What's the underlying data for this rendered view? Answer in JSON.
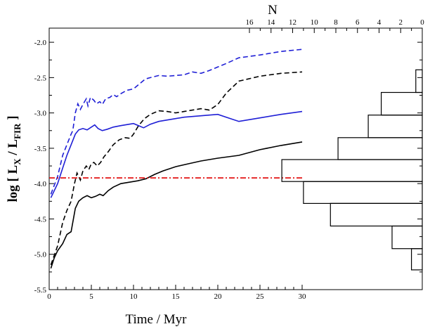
{
  "chart_data": {
    "type": "line",
    "title": "",
    "xlabel": "Time / Myr",
    "ylabel": {
      "prefix": "log [ L",
      "sub1": "X",
      "mid": " / L",
      "sub2": "FIR",
      "suffix": " ]"
    },
    "xlim": [
      0,
      30
    ],
    "ylim": [
      -5.5,
      -1.8
    ],
    "x_ticks": [
      0,
      5,
      10,
      15,
      20,
      25,
      30
    ],
    "y_ticks": [
      -5.5,
      -5.0,
      -4.5,
      -4.0,
      -3.5,
      -3.0,
      -2.5,
      -2.0
    ],
    "y_tick_labels": [
      "-5.5",
      "-5.0",
      "-4.5",
      "-4.0",
      "-3.5",
      "-3.0",
      "-2.5",
      "-2.0"
    ],
    "colors": {
      "blue": "#1f1fd6",
      "black": "#000000",
      "red": "#e00000"
    },
    "series": [
      {
        "color": "#1f1fd6",
        "dash": "dashed",
        "points": [
          [
            0.2,
            -4.15
          ],
          [
            1,
            -3.9
          ],
          [
            1.6,
            -3.6
          ],
          [
            2.1,
            -3.45
          ],
          [
            2.6,
            -3.3
          ],
          [
            2.8,
            -3.25
          ],
          [
            3.1,
            -3.0
          ],
          [
            3.4,
            -2.87
          ],
          [
            3.7,
            -2.95
          ],
          [
            4,
            -2.88
          ],
          [
            4.4,
            -2.8
          ],
          [
            4.6,
            -2.9
          ],
          [
            4.9,
            -2.78
          ],
          [
            5.3,
            -2.82
          ],
          [
            5.6,
            -2.87
          ],
          [
            6,
            -2.84
          ],
          [
            6.3,
            -2.88
          ],
          [
            6.7,
            -2.8
          ],
          [
            7.2,
            -2.78
          ],
          [
            7.6,
            -2.74
          ],
          [
            8,
            -2.77
          ],
          [
            8.6,
            -2.72
          ],
          [
            9.2,
            -2.68
          ],
          [
            10,
            -2.66
          ],
          [
            10.8,
            -2.58
          ],
          [
            11.4,
            -2.52
          ],
          [
            12,
            -2.5
          ],
          [
            13,
            -2.47
          ],
          [
            14,
            -2.48
          ],
          [
            15,
            -2.47
          ],
          [
            16,
            -2.46
          ],
          [
            17,
            -2.42
          ],
          [
            18,
            -2.44
          ],
          [
            19,
            -2.4
          ],
          [
            20,
            -2.35
          ],
          [
            21,
            -2.3
          ],
          [
            22.5,
            -2.22
          ],
          [
            25,
            -2.18
          ],
          [
            27.5,
            -2.13
          ],
          [
            30,
            -2.1
          ]
        ]
      },
      {
        "color": "#000000",
        "dash": "dashed",
        "points": [
          [
            0.2,
            -5.15
          ],
          [
            1,
            -4.88
          ],
          [
            1.6,
            -4.55
          ],
          [
            2.1,
            -4.38
          ],
          [
            2.6,
            -4.25
          ],
          [
            3,
            -4.0
          ],
          [
            3.3,
            -3.85
          ],
          [
            3.7,
            -3.95
          ],
          [
            4,
            -3.82
          ],
          [
            4.4,
            -3.75
          ],
          [
            4.7,
            -3.8
          ],
          [
            5,
            -3.72
          ],
          [
            5.3,
            -3.7
          ],
          [
            5.7,
            -3.75
          ],
          [
            6.1,
            -3.7
          ],
          [
            6.5,
            -3.62
          ],
          [
            7,
            -3.55
          ],
          [
            7.6,
            -3.45
          ],
          [
            8.3,
            -3.38
          ],
          [
            9,
            -3.35
          ],
          [
            9.6,
            -3.36
          ],
          [
            10,
            -3.3
          ],
          [
            10.6,
            -3.18
          ],
          [
            11.3,
            -3.08
          ],
          [
            12,
            -3.02
          ],
          [
            13,
            -2.97
          ],
          [
            14,
            -2.98
          ],
          [
            15,
            -3.0
          ],
          [
            16,
            -2.98
          ],
          [
            17,
            -2.96
          ],
          [
            18,
            -2.94
          ],
          [
            19,
            -2.96
          ],
          [
            20,
            -2.88
          ],
          [
            21,
            -2.72
          ],
          [
            22.5,
            -2.55
          ],
          [
            25,
            -2.48
          ],
          [
            27.5,
            -2.44
          ],
          [
            30,
            -2.42
          ]
        ]
      },
      {
        "color": "#1f1fd6",
        "dash": "solid",
        "points": [
          [
            0.2,
            -4.2
          ],
          [
            1,
            -4.0
          ],
          [
            1.6,
            -3.78
          ],
          [
            2.1,
            -3.6
          ],
          [
            2.6,
            -3.45
          ],
          [
            3.1,
            -3.3
          ],
          [
            3.5,
            -3.24
          ],
          [
            4,
            -3.22
          ],
          [
            4.5,
            -3.24
          ],
          [
            5,
            -3.2
          ],
          [
            5.4,
            -3.17
          ],
          [
            5.8,
            -3.22
          ],
          [
            6.3,
            -3.25
          ],
          [
            6.9,
            -3.23
          ],
          [
            7.6,
            -3.2
          ],
          [
            8.5,
            -3.18
          ],
          [
            9.5,
            -3.16
          ],
          [
            10,
            -3.15
          ],
          [
            10.6,
            -3.18
          ],
          [
            11.2,
            -3.21
          ],
          [
            12,
            -3.16
          ],
          [
            13,
            -3.12
          ],
          [
            14,
            -3.1
          ],
          [
            15,
            -3.08
          ],
          [
            16,
            -3.06
          ],
          [
            17,
            -3.05
          ],
          [
            18,
            -3.04
          ],
          [
            19,
            -3.03
          ],
          [
            20,
            -3.02
          ],
          [
            21.5,
            -3.08
          ],
          [
            22.5,
            -3.12
          ],
          [
            25,
            -3.07
          ],
          [
            27.5,
            -3.02
          ],
          [
            30,
            -2.98
          ]
        ]
      },
      {
        "color": "#000000",
        "dash": "solid",
        "points": [
          [
            0.2,
            -5.2
          ],
          [
            0.6,
            -5.05
          ],
          [
            1,
            -4.95
          ],
          [
            1.6,
            -4.85
          ],
          [
            2.1,
            -4.72
          ],
          [
            2.6,
            -4.68
          ],
          [
            3.1,
            -4.35
          ],
          [
            3.5,
            -4.25
          ],
          [
            4,
            -4.2
          ],
          [
            4.5,
            -4.17
          ],
          [
            5,
            -4.2
          ],
          [
            5.5,
            -4.18
          ],
          [
            6,
            -4.15
          ],
          [
            6.4,
            -4.17
          ],
          [
            7,
            -4.1
          ],
          [
            7.6,
            -4.05
          ],
          [
            8.5,
            -4.0
          ],
          [
            9.5,
            -3.98
          ],
          [
            10.5,
            -3.96
          ],
          [
            11.5,
            -3.93
          ],
          [
            12.5,
            -3.87
          ],
          [
            13.5,
            -3.82
          ],
          [
            15,
            -3.76
          ],
          [
            16.5,
            -3.72
          ],
          [
            18,
            -3.68
          ],
          [
            20,
            -3.64
          ],
          [
            22.5,
            -3.6
          ],
          [
            25,
            -3.52
          ],
          [
            27.5,
            -3.46
          ],
          [
            30,
            -3.41
          ]
        ]
      },
      {
        "color": "#e00000",
        "dash": "dashdot",
        "points": [
          [
            0,
            -3.92
          ],
          [
            30,
            -3.92
          ]
        ]
      }
    ],
    "histogram": {
      "axis_label": "N",
      "top_ticks": [
        16,
        14,
        12,
        10,
        8,
        6,
        4,
        2,
        0
      ],
      "bins": [
        {
          "y0": -5.22,
          "y1": -4.92,
          "count": 1.0
        },
        {
          "y0": -4.92,
          "y1": -4.6,
          "count": 2.8
        },
        {
          "y0": -4.6,
          "y1": -4.28,
          "count": 8.5
        },
        {
          "y0": -4.28,
          "y1": -3.97,
          "count": 11.0
        },
        {
          "y0": -3.97,
          "y1": -3.66,
          "count": 13.0
        },
        {
          "y0": -3.66,
          "y1": -3.35,
          "count": 7.8
        },
        {
          "y0": -3.35,
          "y1": -3.03,
          "count": 5.0
        },
        {
          "y0": -3.03,
          "y1": -2.71,
          "count": 3.8
        },
        {
          "y0": -2.71,
          "y1": -2.39,
          "count": 0.6
        }
      ]
    }
  }
}
